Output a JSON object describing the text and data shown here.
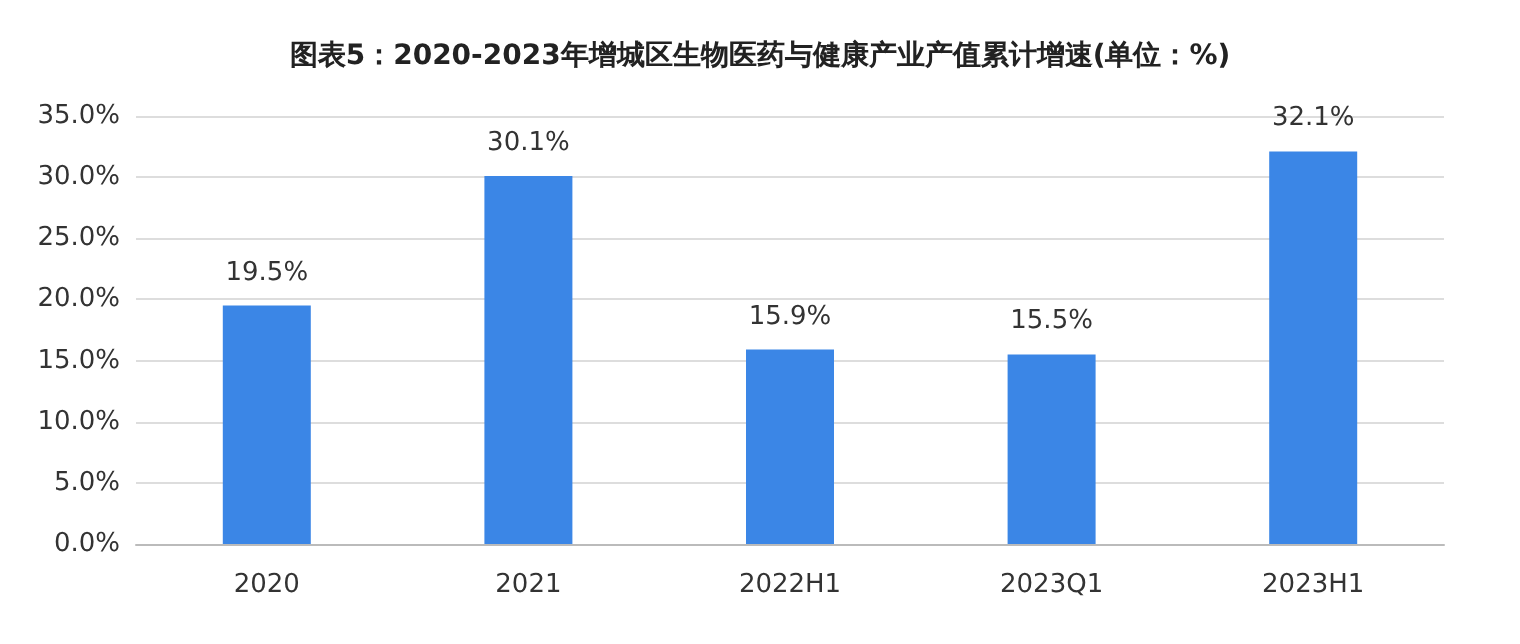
{
  "chart_data": {
    "type": "bar",
    "title": "图表5：2020-2023年增城区生物医药与健康产业产值累计增速(单位：%)",
    "categories": [
      "2020",
      "2021",
      "2022H1",
      "2023Q1",
      "2023H1"
    ],
    "values": [
      19.5,
      30.1,
      15.9,
      15.5,
      32.1
    ],
    "value_labels": [
      "19.5%",
      "30.1%",
      "15.9%",
      "15.5%",
      "32.1%"
    ],
    "color": "#3b86e6",
    "ylim": [
      0,
      35
    ],
    "yticks": [
      {
        "value": 0,
        "label": "0.0%"
      },
      {
        "value": 5,
        "label": "5.0%"
      },
      {
        "value": 10,
        "label": "10.0%"
      },
      {
        "value": 15,
        "label": "15.0%"
      },
      {
        "value": 20,
        "label": "20.0%"
      },
      {
        "value": 25,
        "label": "25.0%"
      },
      {
        "value": 30,
        "label": "30.0%"
      },
      {
        "value": 35,
        "label": "35.0%"
      }
    ],
    "grid": "y"
  }
}
